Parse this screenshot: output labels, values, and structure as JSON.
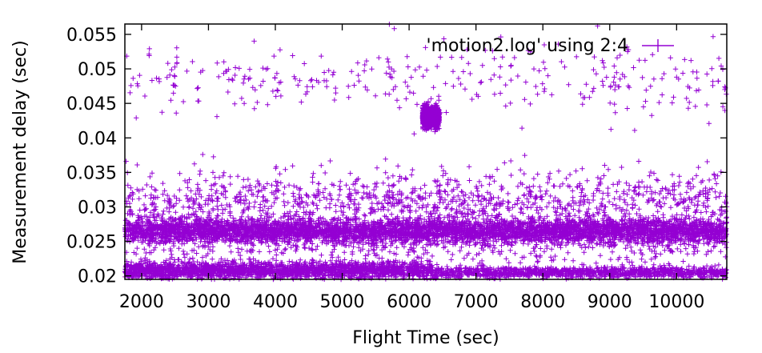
{
  "chart_data": {
    "type": "scatter",
    "title": "",
    "xlabel": "Flight Time (sec)",
    "ylabel": "Measurement delay (sec)",
    "xlim": [
      1750,
      10750
    ],
    "ylim": [
      0.0195,
      0.0565
    ],
    "xticks": [
      2000,
      3000,
      4000,
      5000,
      6000,
      7000,
      8000,
      9000,
      10000
    ],
    "xtick_labels": [
      "2000",
      "3000",
      "4000",
      "5000",
      "6000",
      "7000",
      "8000",
      "9000",
      "10000"
    ],
    "yticks": [
      0.02,
      0.025,
      0.03,
      0.035,
      0.04,
      0.045,
      0.05,
      0.055
    ],
    "ytick_labels": [
      "0.02",
      "0.025",
      "0.03",
      "0.035",
      "0.04",
      "0.045",
      "0.05",
      "0.055"
    ],
    "grid": false,
    "legend_position": "top-right",
    "series": [
      {
        "name": "'motion2.log' using 2:4",
        "color": "#9400d3",
        "marker": "plus",
        "approximate_clusters": [
          {
            "x_range": [
              1750,
              10750
            ],
            "y_center": 0.0265,
            "spread": 0.0009,
            "density": "very high"
          },
          {
            "x_range": [
              1750,
              6350
            ],
            "y_center": 0.0208,
            "spread": 0.0006,
            "density": "high"
          },
          {
            "x_range": [
              6350,
              10750
            ],
            "y_center": 0.0205,
            "spread": 0.0004,
            "density": "medium"
          },
          {
            "x_range": [
              1750,
              10750
            ],
            "y_center": 0.031,
            "spread": 0.002,
            "density": "medium"
          },
          {
            "x_range": [
              1750,
              10750
            ],
            "y_center": 0.0235,
            "spread": 0.0012,
            "density": "low"
          },
          {
            "x_range": [
              6200,
              6450
            ],
            "y_center": 0.043,
            "spread": 0.0007,
            "density": "medium"
          },
          {
            "x_range": [
              1750,
              10750
            ],
            "y_center": 0.0485,
            "spread": 0.0025,
            "density": "sparse"
          }
        ]
      }
    ]
  }
}
